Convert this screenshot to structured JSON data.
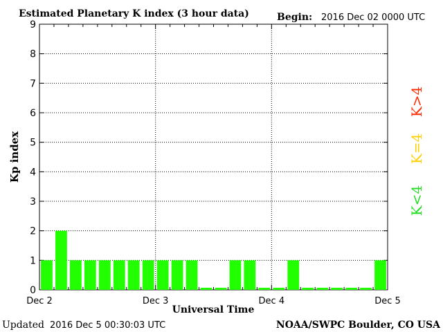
{
  "header": {
    "title": "Estimated Planetary K index (3 hour data)",
    "begin_label": "Begin:",
    "begin_value": "2016 Dec 02 0000 UTC"
  },
  "footer": {
    "updated_label": "Updated",
    "updated_value": "2016 Dec  5 00:30:03 UTC",
    "credit": "NOAA/SWPC Boulder, CO USA"
  },
  "legend": [
    {
      "label": "K>4",
      "color": "#ff2a00"
    },
    {
      "label": "K=4",
      "color": "#ffd000"
    },
    {
      "label": "K<4",
      "color": "#22dd22"
    }
  ],
  "chart_data": {
    "type": "bar",
    "title": "Estimated Planetary K index (3 hour data)",
    "xlabel": "Universal Time",
    "ylabel": "Kp index",
    "ylim": [
      0,
      9
    ],
    "yticks": [
      0,
      1,
      2,
      3,
      4,
      5,
      6,
      7,
      8,
      9
    ],
    "xticks": [
      "Dec 2",
      "Dec 3",
      "Dec 4",
      "Dec 5"
    ],
    "bar_color": "#22ff00",
    "grid": true,
    "series": [
      {
        "values": [
          1,
          2,
          1,
          1,
          1,
          1,
          1,
          1,
          1,
          1,
          1,
          0,
          0,
          1,
          1,
          0,
          0,
          1,
          0,
          0,
          0,
          0,
          0,
          1
        ]
      }
    ]
  }
}
